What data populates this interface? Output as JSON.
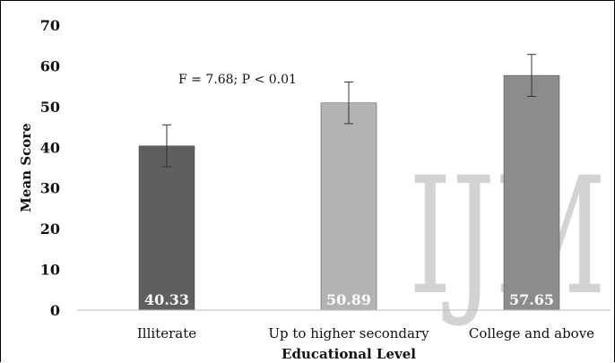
{
  "chart_data": {
    "type": "bar",
    "categories": [
      "Illiterate",
      "Up to higher secondary",
      "College and above"
    ],
    "values": [
      40.33,
      50.89,
      57.65
    ],
    "value_labels": [
      "40.33",
      "50.89",
      "57.65"
    ],
    "error_bars": [
      {
        "low": 35.2,
        "high": 45.5
      },
      {
        "low": 45.8,
        "high": 56.0
      },
      {
        "low": 52.5,
        "high": 62.8
      }
    ],
    "colors": [
      "#5f5f5f",
      "#b3b3b3",
      "#8c8c8c"
    ],
    "title": "",
    "xlabel": "Educational Level",
    "ylabel": "Mean Score",
    "ylim": [
      0,
      70
    ],
    "yticks": [
      "0",
      "10",
      "20",
      "30",
      "40",
      "50",
      "60",
      "70"
    ],
    "grid": false,
    "annotation": "F = 7.68; P < 0.01"
  },
  "watermark": "IJM"
}
